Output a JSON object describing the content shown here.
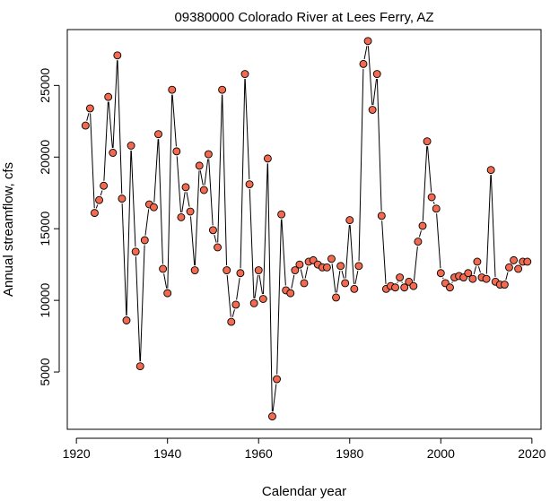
{
  "chart_data": {
    "type": "line",
    "title": "09380000 Colorado River at Lees Ferry, AZ",
    "xlabel": "Calendar year",
    "ylabel": "Annual streamflow, cfs",
    "xlim": [
      1918,
      2022
    ],
    "ylim": [
      1000,
      28900
    ],
    "xticks": [
      1920,
      1940,
      1960,
      1980,
      2000,
      2020
    ],
    "yticks": [
      5000,
      10000,
      15000,
      20000,
      25000
    ],
    "grid": false,
    "marker_color": "#f26b50",
    "line_color": "#000000",
    "series": [
      {
        "x": [
          1922,
          1923,
          1924,
          1925,
          1926,
          1927,
          1928,
          1929,
          1930,
          1931,
          1932,
          1933,
          1934,
          1935,
          1936,
          1937,
          1938,
          1939,
          1940,
          1941,
          1942,
          1943,
          1944,
          1945,
          1946,
          1947,
          1948,
          1949,
          1950,
          1951,
          1952,
          1953,
          1954,
          1955,
          1956,
          1957,
          1958,
          1959,
          1960,
          1961,
          1962,
          1963,
          1964,
          1965,
          1966,
          1967,
          1968,
          1969,
          1970,
          1971,
          1972,
          1973,
          1974,
          1975,
          1976,
          1977,
          1978,
          1979,
          1980,
          1981,
          1982,
          1983,
          1984,
          1985,
          1986,
          1987,
          1988,
          1989,
          1990,
          1991,
          1992,
          1993,
          1994,
          1995,
          1996,
          1997,
          1998,
          1999,
          2000,
          2001,
          2002,
          2003,
          2004,
          2005,
          2006,
          2007,
          2008,
          2009,
          2010,
          2011,
          2012,
          2013,
          2014,
          2015,
          2016,
          2017,
          2018,
          2019
        ],
        "y": [
          22200,
          23400,
          16100,
          17000,
          18000,
          24200,
          20300,
          27100,
          17100,
          8600,
          20800,
          13400,
          5400,
          14200,
          16700,
          16500,
          21600,
          12200,
          10500,
          24700,
          20400,
          15800,
          17900,
          16200,
          12100,
          19400,
          17700,
          20200,
          14900,
          13700,
          24700,
          12100,
          8500,
          9700,
          11900,
          25800,
          18100,
          9800,
          12100,
          10100,
          19900,
          1900,
          4500,
          16000,
          10700,
          10500,
          12100,
          12500,
          11200,
          12700,
          12800,
          12500,
          12300,
          12300,
          12900,
          10200,
          12400,
          11200,
          15600,
          10800,
          12400,
          26500,
          28100,
          23300,
          25800,
          15900,
          10800,
          11000,
          10900,
          11600,
          10900,
          11300,
          11000,
          14100,
          15200,
          21100,
          17200,
          16400,
          11900,
          11200,
          10900,
          11600,
          11700,
          11600,
          11900,
          11500,
          12700,
          11600,
          11500,
          19100,
          11300,
          11100,
          11100,
          12300,
          12800,
          12200,
          12700,
          12700
        ]
      }
    ]
  }
}
